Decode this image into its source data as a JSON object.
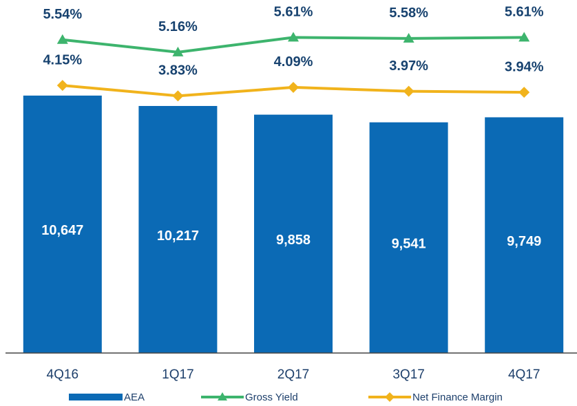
{
  "chart_data": {
    "type": "bar",
    "categories": [
      "4Q16",
      "1Q17",
      "2Q17",
      "3Q17",
      "4Q17"
    ],
    "ylim": [
      0,
      14600
    ],
    "y2lim": [
      -4,
      6.75
    ],
    "series": [
      {
        "name": "AEA",
        "type": "bar",
        "color": "#0b6ab5",
        "values": [
          10647,
          10217,
          9858,
          9541,
          9749
        ],
        "value_labels": [
          "10,647",
          "10,217",
          "9,858",
          "9,541",
          "9,749"
        ]
      },
      {
        "name": "Gross Yield",
        "type": "line",
        "axis": "y2",
        "marker": "triangle",
        "color": "#3db46d",
        "values": [
          5.54,
          5.16,
          5.61,
          5.58,
          5.61
        ],
        "value_labels": [
          "5.54%",
          "5.16%",
          "5.61%",
          "5.58%",
          "5.61%"
        ]
      },
      {
        "name": "Net Finance Margin",
        "type": "line",
        "axis": "y2",
        "marker": "diamond",
        "color": "#f1b31c",
        "values": [
          4.15,
          3.83,
          4.09,
          3.97,
          3.94
        ],
        "value_labels": [
          "4.15%",
          "3.83%",
          "4.09%",
          "3.97%",
          "3.94%"
        ]
      }
    ]
  }
}
